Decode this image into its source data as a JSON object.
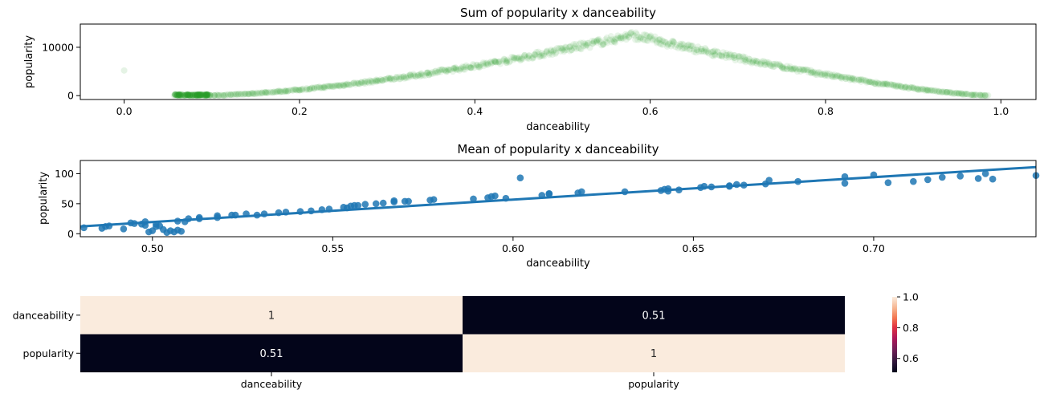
{
  "charts": [
    {
      "type": "scatter",
      "title": "Sum of popularity x danceability",
      "xlabel": "danceability",
      "ylabel": "popularity",
      "xlim": [
        -0.05,
        1.04
      ],
      "ylim": [
        -800,
        14800
      ],
      "xticks": [
        0.0,
        0.2,
        0.4,
        0.6,
        0.8,
        1.0
      ],
      "xtick_labels": [
        "0.0",
        "0.2",
        "0.4",
        "0.6",
        "0.8",
        "1.0"
      ],
      "yticks": [
        0,
        10000
      ],
      "ytick_labels": [
        "0",
        "10000"
      ],
      "color": "#2ca02c",
      "marker_alpha": 0.1,
      "outlier": {
        "x": 0.0,
        "y": 5200
      },
      "x_range": [
        0.058,
        0.985
      ],
      "peak": {
        "x": 0.58,
        "y": 12500
      }
    },
    {
      "type": "regplot",
      "title": "Mean of popularity x danceability",
      "xlabel": "danceability",
      "ylabel": "popularity",
      "xlim": [
        0.48,
        0.745
      ],
      "ylim": [
        -5,
        122
      ],
      "xticks": [
        0.5,
        0.55,
        0.6,
        0.65,
        0.7
      ],
      "xtick_labels": [
        "0.50",
        "0.55",
        "0.60",
        "0.65",
        "0.70"
      ],
      "yticks": [
        0,
        50,
        100
      ],
      "ytick_labels": [
        "0",
        "50",
        "100"
      ],
      "color": "#1f77b4",
      "fit_line": [
        [
          0.48,
          12
        ],
        [
          0.745,
          111
        ]
      ],
      "x": [
        0.481,
        0.486,
        0.487,
        0.488,
        0.492,
        0.494,
        0.495,
        0.497,
        0.498,
        0.498,
        0.499,
        0.5,
        0.501,
        0.501,
        0.502,
        0.503,
        0.504,
        0.505,
        0.506,
        0.507,
        0.507,
        0.508,
        0.509,
        0.51,
        0.513,
        0.513,
        0.518,
        0.518,
        0.522,
        0.523,
        0.526,
        0.529,
        0.531,
        0.535,
        0.537,
        0.541,
        0.544,
        0.547,
        0.549,
        0.553,
        0.554,
        0.555,
        0.556,
        0.557,
        0.559,
        0.562,
        0.564,
        0.567,
        0.567,
        0.57,
        0.571,
        0.577,
        0.578,
        0.589,
        0.593,
        0.594,
        0.595,
        0.598,
        0.602,
        0.608,
        0.61,
        0.61,
        0.618,
        0.619,
        0.631,
        0.641,
        0.642,
        0.643,
        0.643,
        0.646,
        0.652,
        0.653,
        0.655,
        0.66,
        0.66,
        0.662,
        0.664,
        0.67,
        0.671,
        0.679,
        0.692,
        0.692,
        0.7,
        0.704,
        0.711,
        0.715,
        0.719,
        0.724,
        0.729,
        0.731,
        0.733,
        0.745
      ],
      "y": [
        10,
        9,
        12,
        13,
        8,
        18,
        17,
        16,
        14,
        20,
        3,
        5,
        12,
        16,
        13,
        7,
        2,
        5,
        3,
        6,
        21,
        4,
        20,
        25,
        25,
        27,
        30,
        27,
        31,
        31,
        33,
        31,
        33,
        35,
        36,
        37,
        38,
        40,
        41,
        44,
        43,
        46,
        47,
        47,
        49,
        50,
        51,
        53,
        55,
        54,
        54,
        56,
        57,
        58,
        60,
        62,
        63,
        59,
        93,
        64,
        66,
        67,
        68,
        70,
        70,
        72,
        74,
        75,
        71,
        73,
        77,
        79,
        78,
        79,
        80,
        82,
        81,
        83,
        89,
        87,
        84,
        95,
        98,
        85,
        87,
        90,
        94,
        96,
        92,
        100,
        91,
        97
      ]
    },
    {
      "type": "heatmap",
      "row_labels": [
        "danceability",
        "popularity"
      ],
      "col_labels": [
        "danceability",
        "popularity"
      ],
      "values": [
        [
          1.0,
          0.51
        ],
        [
          0.51,
          1.0
        ]
      ],
      "annotations": [
        [
          "1",
          "0.51"
        ],
        [
          "0.51",
          "1"
        ]
      ],
      "colorbar": {
        "ticks": [
          0.6,
          0.8,
          1.0
        ],
        "tick_labels": [
          "0.6",
          "0.8",
          "1.0"
        ],
        "range": [
          0.51,
          1.0
        ],
        "colormap": "rocket"
      },
      "colors": {
        "high": "#faebdd",
        "low": "#03051a"
      }
    }
  ]
}
